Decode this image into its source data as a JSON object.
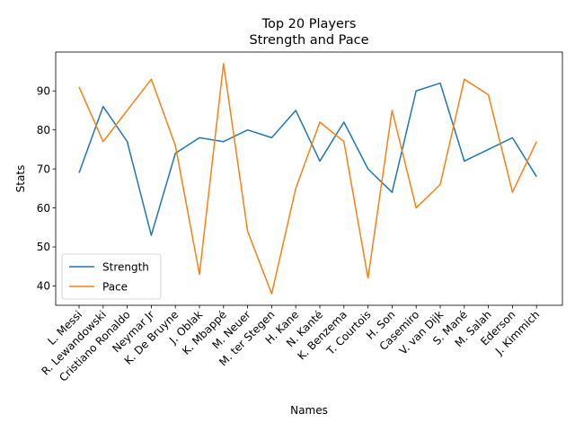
{
  "chart_data": {
    "type": "line",
    "title": "Top 20 Players",
    "subtitle": "Strength and Pace",
    "xlabel": "Names",
    "ylabel": "Stats",
    "categories": [
      "L. Messi",
      "R. Lewandowski",
      "Cristiano Ronaldo",
      "Neymar Jr",
      "K. De Bruyne",
      "J. Oblak",
      "K. Mbappé",
      "M. Neuer",
      "M. ter Stegen",
      "H. Kane",
      "N. Kanté",
      "K. Benzema",
      "T. Courtois",
      "H. Son",
      "Casemiro",
      "V. van Dijk",
      "S. Mané",
      "M. Salah",
      "Ederson",
      "J. Kimmich"
    ],
    "series": [
      {
        "name": "Strength",
        "color": "#1f77b4",
        "values": [
          69,
          86,
          77,
          53,
          74,
          78,
          77,
          80,
          78,
          85,
          72,
          82,
          70,
          64,
          90,
          92,
          72,
          75,
          78,
          68
        ]
      },
      {
        "name": "Pace",
        "color": "#ff7f0e",
        "values": [
          91,
          77,
          85,
          93,
          76,
          43,
          97,
          54,
          38,
          65,
          82,
          77,
          42,
          85,
          60,
          66,
          93,
          89,
          64,
          77
        ]
      }
    ],
    "yticks": [
      40,
      50,
      60,
      70,
      80,
      90
    ],
    "ylim": [
      35.05,
      99.95
    ],
    "grid": false,
    "legend": "lower-left"
  }
}
